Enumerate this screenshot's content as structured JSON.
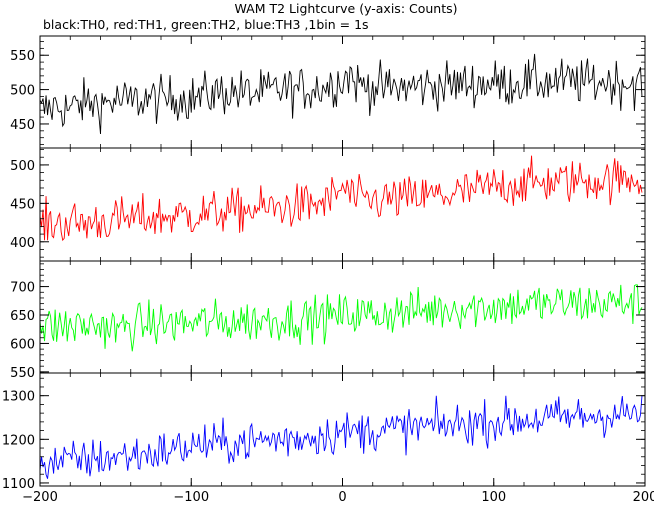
{
  "chart_data": {
    "type": "line",
    "title": "WAM T2 Lightcurve (y-axis: Counts)",
    "subtitle": "black:TH0, red:TH1, green:TH2, blue:TH3 ,1bin = 1s",
    "xlim": [
      -200,
      200
    ],
    "x_ticks": [
      -200,
      -100,
      0,
      100,
      200
    ],
    "x_step": 1,
    "grid": false,
    "panels": [
      {
        "color": "#000000",
        "ylim": [
          415,
          578
        ],
        "y_ticks": [
          450,
          500,
          550
        ],
        "points": [
          [
            -200,
            468
          ],
          [
            -190,
            476
          ],
          [
            -180,
            472
          ],
          [
            -170,
            481
          ],
          [
            -160,
            479
          ],
          [
            -150,
            484
          ],
          [
            -140,
            482
          ],
          [
            -130,
            487
          ],
          [
            -120,
            485
          ],
          [
            -110,
            489
          ],
          [
            -100,
            487
          ],
          [
            -90,
            492
          ],
          [
            -80,
            496
          ],
          [
            -70,
            497
          ],
          [
            -60,
            494
          ],
          [
            -50,
            496
          ],
          [
            -40,
            501
          ],
          [
            -30,
            499
          ],
          [
            -20,
            502
          ],
          [
            -10,
            505
          ],
          [
            0,
            515
          ],
          [
            5,
            522
          ],
          [
            10,
            508
          ],
          [
            20,
            504
          ],
          [
            30,
            502
          ],
          [
            40,
            503
          ],
          [
            50,
            505
          ],
          [
            60,
            506
          ],
          [
            70,
            507
          ],
          [
            80,
            508
          ],
          [
            90,
            509
          ],
          [
            100,
            510
          ],
          [
            110,
            508
          ],
          [
            120,
            512
          ],
          [
            130,
            511
          ],
          [
            140,
            511
          ],
          [
            150,
            512
          ],
          [
            160,
            510
          ],
          [
            170,
            512
          ],
          [
            180,
            511
          ],
          [
            190,
            510
          ],
          [
            198,
            508
          ]
        ],
        "noise": 28
      },
      {
        "color": "#ff0000",
        "ylim": [
          375,
          522
        ],
        "y_ticks": [
          400,
          450,
          500
        ],
        "points": [
          [
            -200,
            422
          ],
          [
            -190,
            424
          ],
          [
            -180,
            425
          ],
          [
            -170,
            424
          ],
          [
            -160,
            427
          ],
          [
            -150,
            428
          ],
          [
            -140,
            430
          ],
          [
            -130,
            431
          ],
          [
            -120,
            432
          ],
          [
            -110,
            434
          ],
          [
            -100,
            435
          ],
          [
            -90,
            437
          ],
          [
            -80,
            439
          ],
          [
            -70,
            440
          ],
          [
            -60,
            442
          ],
          [
            -50,
            443
          ],
          [
            -40,
            445
          ],
          [
            -30,
            446
          ],
          [
            -20,
            448
          ],
          [
            -10,
            452
          ],
          [
            0,
            470
          ],
          [
            5,
            462
          ],
          [
            10,
            453
          ],
          [
            20,
            454
          ],
          [
            30,
            455
          ],
          [
            40,
            456
          ],
          [
            50,
            458
          ],
          [
            60,
            460
          ],
          [
            70,
            461
          ],
          [
            80,
            464
          ],
          [
            90,
            468
          ],
          [
            100,
            472
          ],
          [
            110,
            474
          ],
          [
            120,
            476
          ],
          [
            130,
            477
          ],
          [
            140,
            478
          ],
          [
            150,
            479
          ],
          [
            160,
            480
          ],
          [
            170,
            480
          ],
          [
            180,
            481
          ],
          [
            190,
            482
          ],
          [
            198,
            484
          ]
        ],
        "noise": 24
      },
      {
        "color": "#00ff00",
        "ylim": [
          548,
          745
        ],
        "y_ticks": [
          550,
          600,
          650,
          700
        ],
        "points": [
          [
            -200,
            628
          ],
          [
            -190,
            630
          ],
          [
            -180,
            630
          ],
          [
            -170,
            631
          ],
          [
            -160,
            632
          ],
          [
            -150,
            625
          ],
          [
            -140,
            630
          ],
          [
            -130,
            634
          ],
          [
            -120,
            633
          ],
          [
            -110,
            636
          ],
          [
            -100,
            635
          ],
          [
            -90,
            638
          ],
          [
            -80,
            636
          ],
          [
            -70,
            640
          ],
          [
            -60,
            639
          ],
          [
            -50,
            641
          ],
          [
            -40,
            643
          ],
          [
            -30,
            642
          ],
          [
            -20,
            645
          ],
          [
            -10,
            646
          ],
          [
            0,
            650
          ],
          [
            10,
            652
          ],
          [
            20,
            650
          ],
          [
            30,
            654
          ],
          [
            40,
            655
          ],
          [
            50,
            657
          ],
          [
            60,
            659
          ],
          [
            70,
            662
          ],
          [
            80,
            664
          ],
          [
            90,
            664
          ],
          [
            100,
            665
          ],
          [
            110,
            666
          ],
          [
            120,
            668
          ],
          [
            130,
            669
          ],
          [
            140,
            668
          ],
          [
            150,
            670
          ],
          [
            160,
            670
          ],
          [
            170,
            671
          ],
          [
            180,
            671
          ],
          [
            190,
            672
          ],
          [
            198,
            672
          ]
        ],
        "noise": 32
      },
      {
        "color": "#0000ff",
        "ylim": [
          1093,
          1352
        ],
        "y_ticks": [
          1100,
          1200,
          1300
        ],
        "points": [
          [
            -200,
            1147
          ],
          [
            -190,
            1148
          ],
          [
            -180,
            1150
          ],
          [
            -170,
            1153
          ],
          [
            -160,
            1157
          ],
          [
            -150,
            1160
          ],
          [
            -140,
            1163
          ],
          [
            -130,
            1166
          ],
          [
            -120,
            1172
          ],
          [
            -110,
            1178
          ],
          [
            -100,
            1184
          ],
          [
            -90,
            1190
          ],
          [
            -80,
            1188
          ],
          [
            -70,
            1192
          ],
          [
            -60,
            1195
          ],
          [
            -50,
            1198
          ],
          [
            -40,
            1200
          ],
          [
            -30,
            1203
          ],
          [
            -20,
            1207
          ],
          [
            -10,
            1212
          ],
          [
            0,
            1215
          ],
          [
            10,
            1218
          ],
          [
            20,
            1220
          ],
          [
            30,
            1222
          ],
          [
            40,
            1225
          ],
          [
            50,
            1228
          ],
          [
            60,
            1230
          ],
          [
            70,
            1233
          ],
          [
            80,
            1235
          ],
          [
            90,
            1238
          ],
          [
            100,
            1240
          ],
          [
            110,
            1243
          ],
          [
            120,
            1245
          ],
          [
            130,
            1247
          ],
          [
            140,
            1249
          ],
          [
            150,
            1251
          ],
          [
            160,
            1253
          ],
          [
            170,
            1255
          ],
          [
            180,
            1257
          ],
          [
            190,
            1258
          ],
          [
            198,
            1262
          ]
        ],
        "noise": 40
      }
    ]
  }
}
